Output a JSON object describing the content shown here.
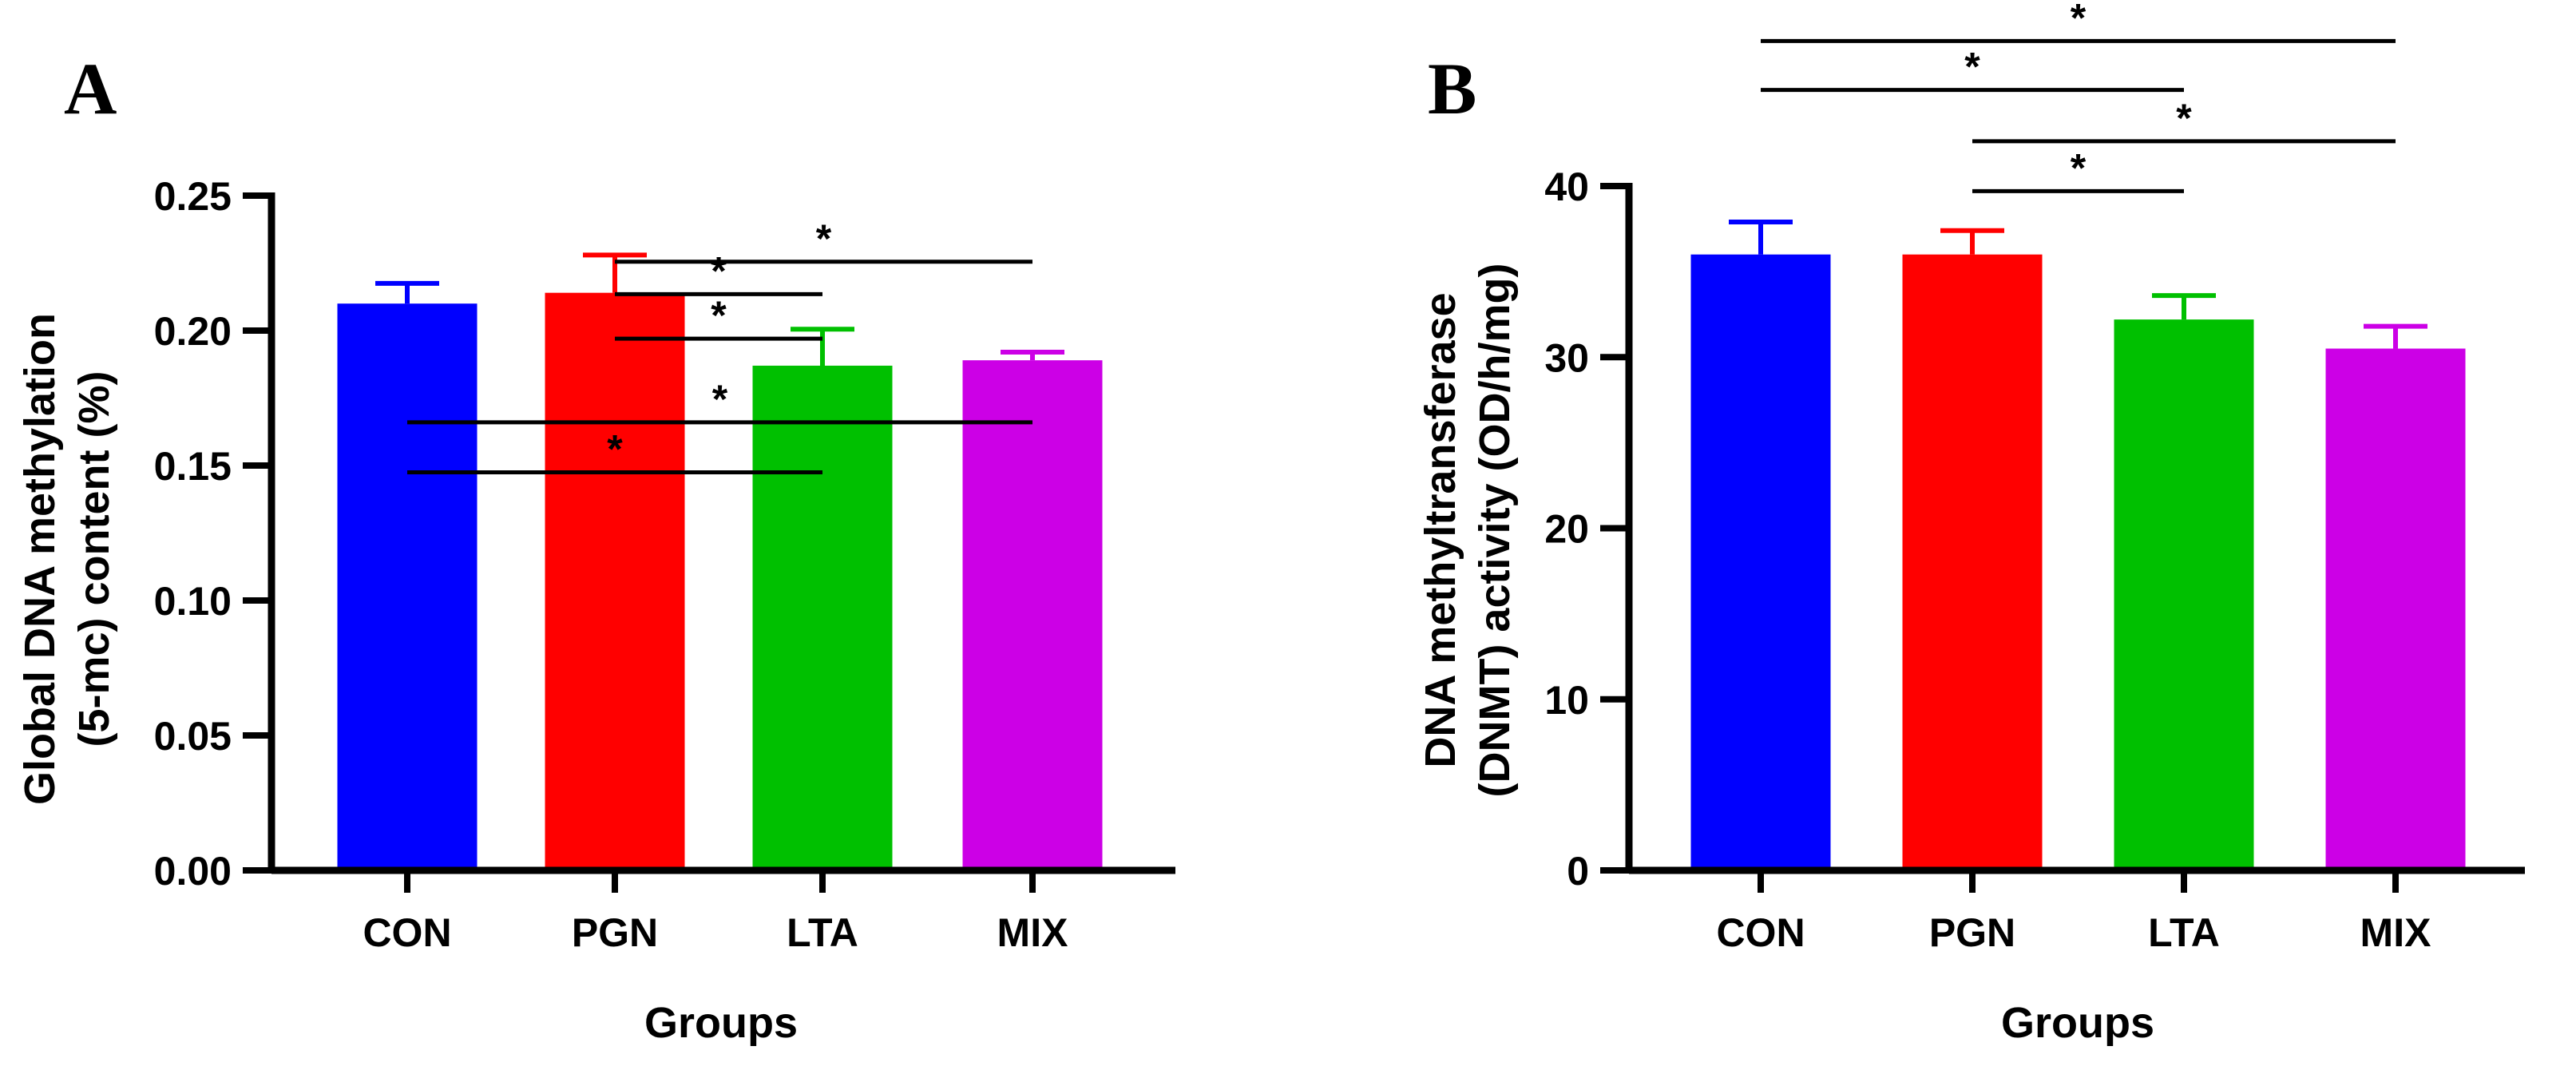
{
  "chart_data": [
    {
      "type": "bar",
      "panel": "A",
      "categories": [
        "CON",
        "PGN",
        "LTA",
        "MIX"
      ],
      "values": [
        0.21,
        0.214,
        0.187,
        0.189
      ],
      "errors": [
        0.0075,
        0.014,
        0.0135,
        0.003
      ],
      "colors": [
        "#0000ff",
        "#ff0000",
        "#00c000",
        "#cc00e6"
      ],
      "xlabel": "Groups",
      "ylabel_lines": [
        "Global DNA methylation",
        "(5-mc) content (%)"
      ],
      "ylim": [
        0,
        0.25
      ],
      "yticks": [
        "0.00",
        "0.05",
        "0.10",
        "0.15",
        "0.20",
        "0.25"
      ],
      "significance": [
        {
          "from": 1,
          "to": 3,
          "label": "*",
          "level": 0.2255
        },
        {
          "from": 1,
          "to": 2,
          "label": "*",
          "level": 0.2135
        },
        {
          "from": 1,
          "to": 2,
          "label": "*",
          "level": 0.197
        },
        {
          "from": 0,
          "to": 3,
          "label": "*",
          "level": 0.166
        },
        {
          "from": 0,
          "to": 2,
          "label": "*",
          "level": 0.1475
        }
      ]
    },
    {
      "type": "bar",
      "panel": "B",
      "categories": [
        "CON",
        "PGN",
        "LTA",
        "MIX"
      ],
      "values": [
        36,
        36,
        32.2,
        30.5
      ],
      "errors": [
        1.9,
        1.4,
        1.4,
        1.3
      ],
      "colors": [
        "#0000ff",
        "#ff0000",
        "#00c000",
        "#cc00e6"
      ],
      "xlabel": "Groups",
      "ylabel_lines": [
        "DNA methyltransferase",
        "(DNMT) activity (OD/h/mg)"
      ],
      "ylim": [
        0,
        40
      ],
      "yticks": [
        "0",
        "10",
        "20",
        "30",
        "40"
      ],
      "significance": [
        {
          "from": 0,
          "to": 3,
          "label": "*",
          "level": 0.212
        },
        {
          "from": 0,
          "to": 2,
          "label": "*",
          "level": 0.1405
        },
        {
          "from": 1,
          "to": 3,
          "label": "*",
          "level": 0.0655
        },
        {
          "from": 1,
          "to": 2,
          "label": "*",
          "level": -0.0075
        }
      ]
    }
  ]
}
